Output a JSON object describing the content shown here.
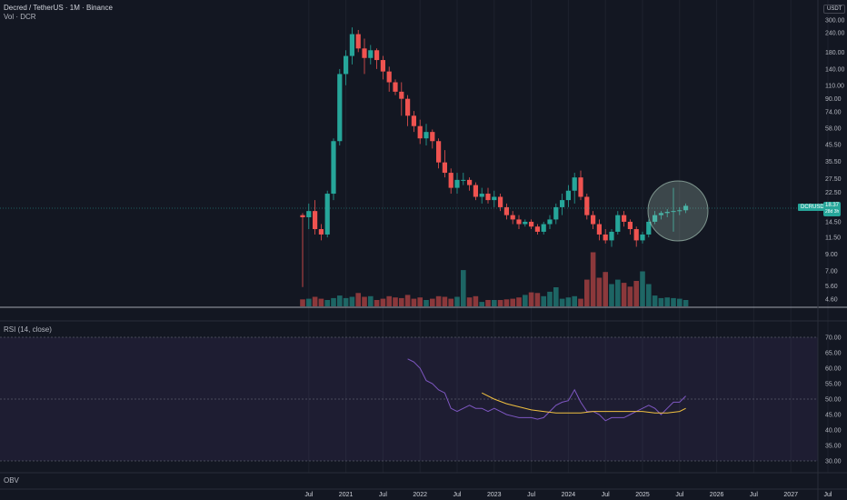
{
  "header": {
    "title": "Decred / TetherUS · 1M · Binance",
    "volume_label": "Vol · DCR",
    "currency_button": "USDT",
    "symbol_badge": "DCRUSDT",
    "last_price": "18.37",
    "countdown": "28d 3h"
  },
  "rsi_panel": {
    "label": "RSI (14, close)",
    "ticks": [
      "70.00",
      "65.00",
      "60.00",
      "55.00",
      "50.00",
      "45.00",
      "40.00",
      "35.00",
      "30.00"
    ]
  },
  "obv_panel": {
    "label": "OBV"
  },
  "colors": {
    "up": "#26a69a",
    "down": "#ef5350",
    "rsi": "#7e57c2",
    "rsi_ma": "#f0c040",
    "background": "#131722"
  },
  "chart_data": {
    "type": "candlestick",
    "title": "Decred / TetherUS · 1M · Binance",
    "scale": "log",
    "y_ticks": [
      300,
      240,
      180,
      140,
      110,
      90,
      74,
      58,
      45.5,
      35.5,
      27.5,
      22.5,
      18.37,
      14.5,
      11.5,
      9,
      7,
      5.6,
      4.6
    ],
    "y_tick_labels": [
      "300.00",
      "240.00",
      "180.00",
      "140.00",
      "110.00",
      "90.00",
      "74.00",
      "58.00",
      "45.50",
      "35.50",
      "27.50",
      "22.50",
      "18.37",
      "14.50",
      "11.50",
      "9.00",
      "7.00",
      "5.60",
      "4.60"
    ],
    "x_tick_labels": [
      "Jul",
      "2021",
      "Jul",
      "2022",
      "Jul",
      "2023",
      "Jul",
      "2024",
      "Jul",
      "2025",
      "Jul",
      "2026",
      "Jul",
      "2027",
      "Jul"
    ],
    "start": "2020-06",
    "ohlc": [
      [
        16,
        16.5,
        5.5,
        15.5
      ],
      [
        15.5,
        19,
        13,
        17
      ],
      [
        17,
        20,
        12,
        13
      ],
      [
        13,
        14,
        11,
        12
      ],
      [
        12,
        23,
        11.5,
        22
      ],
      [
        22,
        50,
        20,
        48
      ],
      [
        48,
        140,
        45,
        130
      ],
      [
        130,
        185,
        110,
        170
      ],
      [
        170,
        260,
        150,
        235
      ],
      [
        235,
        250,
        180,
        190
      ],
      [
        190,
        220,
        130,
        165
      ],
      [
        165,
        200,
        150,
        185
      ],
      [
        185,
        190,
        140,
        160
      ],
      [
        160,
        170,
        120,
        135
      ],
      [
        135,
        145,
        100,
        115
      ],
      [
        115,
        120,
        95,
        100
      ],
      [
        100,
        115,
        70,
        90
      ],
      [
        90,
        95,
        60,
        70
      ],
      [
        70,
        75,
        55,
        60
      ],
      [
        60,
        66,
        46,
        50
      ],
      [
        50,
        62,
        45,
        55
      ],
      [
        55,
        57,
        43,
        48
      ],
      [
        48,
        50,
        32,
        35
      ],
      [
        35,
        42,
        28,
        30
      ],
      [
        30,
        32,
        22,
        24
      ],
      [
        24,
        30,
        22,
        27
      ],
      [
        27,
        30,
        25,
        27
      ],
      [
        27,
        28,
        23,
        25
      ],
      [
        25,
        26,
        20,
        21
      ],
      [
        21,
        24,
        19,
        22
      ],
      [
        22,
        24,
        19,
        20
      ],
      [
        20,
        23,
        18,
        21
      ],
      [
        21,
        22,
        17,
        18
      ],
      [
        18,
        19,
        15,
        16
      ],
      [
        16,
        17,
        14,
        15
      ],
      [
        15,
        16,
        13,
        14
      ],
      [
        14,
        15,
        13.5,
        14.5
      ],
      [
        14.5,
        15,
        13,
        13.5
      ],
      [
        13.5,
        14,
        12,
        12.5
      ],
      [
        12.5,
        14.5,
        12,
        14
      ],
      [
        14,
        16,
        13,
        15
      ],
      [
        15,
        19,
        14,
        18
      ],
      [
        18,
        22,
        16,
        20
      ],
      [
        20,
        25,
        18,
        23
      ],
      [
        23,
        30,
        19,
        28
      ],
      [
        28,
        31,
        20,
        21
      ],
      [
        21,
        22,
        15,
        16
      ],
      [
        16,
        17,
        13,
        14
      ],
      [
        14,
        15,
        11,
        12
      ],
      [
        12,
        13,
        10.5,
        11
      ],
      [
        11,
        13,
        10,
        12.5
      ],
      [
        12.5,
        17,
        12,
        16
      ],
      [
        16,
        17,
        13.5,
        14.5
      ],
      [
        14.5,
        15,
        12,
        13
      ],
      [
        13,
        13.5,
        10,
        11
      ],
      [
        11,
        12.5,
        10.5,
        12
      ],
      [
        12,
        15,
        11.5,
        14.5
      ],
      [
        14.5,
        17,
        14,
        16
      ],
      [
        16,
        17,
        15,
        16.5
      ],
      [
        16.5,
        17.5,
        15.5,
        16.8
      ],
      [
        16.8,
        24,
        12.5,
        17
      ],
      [
        17,
        18,
        16,
        17.2
      ],
      [
        17.2,
        19,
        16.5,
        18.37
      ]
    ],
    "volume_scale": [
      1.1,
      1.2,
      1.5,
      1.2,
      1.0,
      1.3,
      1.7,
      1.3,
      1.5,
      2.1,
      1.5,
      1.6,
      1.0,
      1.2,
      1.6,
      1.4,
      1.3,
      1.8,
      1.2,
      1.4,
      1.0,
      1.2,
      1.6,
      1.5,
      1.2,
      1.5,
      5.7,
      1.4,
      1.6,
      0.7,
      1.0,
      1.0,
      1.0,
      1.1,
      1.2,
      1.4,
      1.8,
      2.2,
      2.1,
      1.6,
      2.3,
      3.0,
      1.2,
      1.4,
      1.6,
      1.2,
      4.2,
      8.5,
      4.5,
      5.4,
      3.5,
      4.2,
      3.7,
      3.1,
      4.0,
      5.5,
      3.5,
      1.7,
      1.3,
      1.4,
      1.3,
      1.2,
      1.0
    ],
    "rsi": [
      null,
      null,
      null,
      null,
      null,
      null,
      null,
      null,
      null,
      null,
      null,
      null,
      null,
      null,
      null,
      null,
      null,
      null,
      null,
      null,
      null,
      null,
      null,
      null,
      null,
      null,
      null,
      null,
      null,
      null,
      null,
      null,
      null,
      null,
      null,
      null,
      null,
      null,
      null,
      null,
      null,
      null,
      null,
      null,
      null,
      null,
      null,
      null,
      null,
      null,
      null,
      null,
      null,
      null,
      null,
      null,
      null,
      null,
      null,
      null,
      null,
      null,
      null
    ],
    "rsi_series": {
      "name": "RSI",
      "points": [
        [
          17,
          63
        ],
        [
          18,
          62
        ],
        [
          19,
          60
        ],
        [
          20,
          56
        ],
        [
          21,
          55
        ],
        [
          22,
          53
        ],
        [
          23,
          52
        ],
        [
          24,
          47
        ],
        [
          25,
          46
        ],
        [
          26,
          47
        ],
        [
          27,
          48
        ],
        [
          28,
          47
        ],
        [
          29,
          47
        ],
        [
          30,
          46
        ],
        [
          31,
          47
        ],
        [
          32,
          46
        ],
        [
          33,
          45
        ],
        [
          34,
          44.5
        ],
        [
          35,
          44
        ],
        [
          36,
          44
        ],
        [
          37,
          44
        ],
        [
          38,
          43.5
        ],
        [
          39,
          44
        ],
        [
          40,
          46
        ],
        [
          41,
          48
        ],
        [
          42,
          49
        ],
        [
          43,
          49.5
        ],
        [
          44,
          53
        ],
        [
          45,
          49
        ],
        [
          46,
          46
        ],
        [
          47,
          46
        ],
        [
          48,
          45
        ],
        [
          49,
          43
        ],
        [
          50,
          44
        ],
        [
          51,
          44
        ],
        [
          52,
          44
        ],
        [
          53,
          45
        ],
        [
          54,
          46
        ],
        [
          55,
          47
        ],
        [
          56,
          48
        ],
        [
          57,
          47
        ],
        [
          58,
          45
        ],
        [
          59,
          47
        ],
        [
          60,
          49
        ],
        [
          61,
          49
        ],
        [
          62,
          51
        ]
      ]
    },
    "rsi_ma_series": {
      "name": "RSI MA",
      "points": [
        [
          29,
          52
        ],
        [
          31,
          50
        ],
        [
          33,
          48.5
        ],
        [
          35,
          47.5
        ],
        [
          37,
          46.5
        ],
        [
          39,
          46
        ],
        [
          41,
          45.5
        ],
        [
          43,
          45.5
        ],
        [
          45,
          45.5
        ],
        [
          47,
          46
        ],
        [
          49,
          46
        ],
        [
          51,
          46
        ],
        [
          53,
          46
        ],
        [
          55,
          46
        ],
        [
          57,
          45.5
        ],
        [
          59,
          45.5
        ],
        [
          61,
          46
        ],
        [
          62,
          47
        ]
      ]
    },
    "rsi_ylim": [
      28,
      72
    ]
  }
}
